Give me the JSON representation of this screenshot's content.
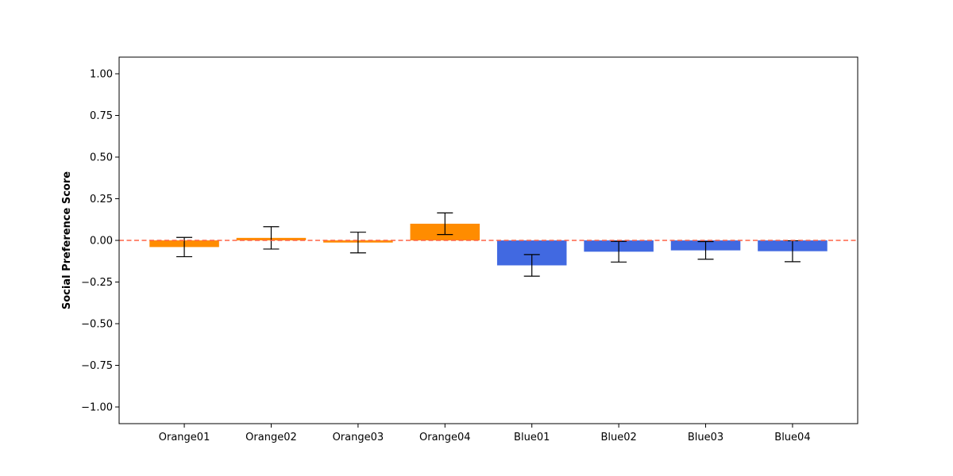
{
  "chart_data": {
    "type": "bar",
    "title": "",
    "xlabel": "",
    "ylabel": "Social Preference Score",
    "ylim": [
      -1.1,
      1.1
    ],
    "yticks": [
      1.0,
      0.75,
      0.5,
      0.25,
      0.0,
      -0.25,
      -0.5,
      -0.75,
      -1.0
    ],
    "ytick_labels": [
      "1.00",
      "0.75",
      "0.50",
      "0.25",
      "0.00",
      "−0.25",
      "−0.50",
      "−0.75",
      "−1.00"
    ],
    "categories": [
      "Orange01",
      "Orange02",
      "Orange03",
      "Orange04",
      "Blue01",
      "Blue02",
      "Blue03",
      "Blue04"
    ],
    "values": [
      -0.04,
      0.015,
      -0.013,
      0.1,
      -0.15,
      -0.068,
      -0.06,
      -0.065
    ],
    "errors": [
      0.058,
      0.067,
      0.062,
      0.065,
      0.065,
      0.062,
      0.053,
      0.063
    ],
    "bar_colors": [
      "#FF8C00",
      "#FF8C00",
      "#FF8C00",
      "#FF8C00",
      "#4169E1",
      "#4169E1",
      "#4169E1",
      "#4169E1"
    ],
    "reference_line": {
      "y": 0.0,
      "color": "#FF6347",
      "style": "dashed"
    },
    "grid": false,
    "legend": "none"
  }
}
